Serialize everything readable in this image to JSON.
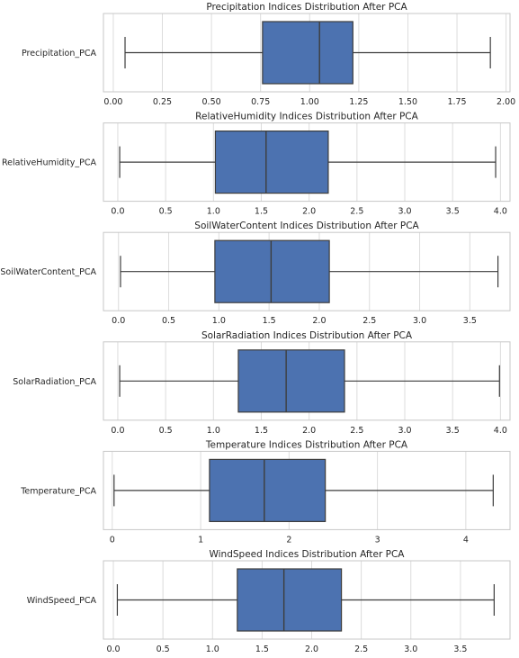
{
  "chart_data": [
    {
      "type": "boxplot",
      "title": "Precipitation Indices Distribution After PCA",
      "category": "Precipitation_PCA",
      "xlim": [
        -0.05,
        2.02
      ],
      "ticks": [
        0.0,
        0.25,
        0.5,
        0.75,
        1.0,
        1.25,
        1.5,
        1.75,
        2.0
      ],
      "tick_labels": [
        "0.00",
        "0.25",
        "0.50",
        "0.75",
        "1.00",
        "1.25",
        "1.50",
        "1.75",
        "2.00"
      ],
      "whisker_low": 0.06,
      "q1": 0.76,
      "median": 1.05,
      "q3": 1.22,
      "whisker_high": 1.92
    },
    {
      "type": "boxplot",
      "title": "RelativeHumidity Indices Distribution After PCA",
      "category": "RelativeHumidity_PCA",
      "xlim": [
        -0.15,
        4.1
      ],
      "ticks": [
        0.0,
        0.5,
        1.0,
        1.5,
        2.0,
        2.5,
        3.0,
        3.5,
        4.0
      ],
      "tick_labels": [
        "0.0",
        "0.5",
        "1.0",
        "1.5",
        "2.0",
        "2.5",
        "3.0",
        "3.5",
        "4.0"
      ],
      "whisker_low": 0.02,
      "q1": 1.02,
      "median": 1.55,
      "q3": 2.2,
      "whisker_high": 3.95
    },
    {
      "type": "boxplot",
      "title": "SoilWaterContent Indices Distribution After PCA",
      "category": "SoilWaterContent_PCA",
      "xlim": [
        -0.15,
        3.9
      ],
      "ticks": [
        0.0,
        0.5,
        1.0,
        1.5,
        2.0,
        2.5,
        3.0,
        3.5
      ],
      "tick_labels": [
        "0.0",
        "0.5",
        "1.0",
        "1.5",
        "2.0",
        "2.5",
        "3.0",
        "3.5"
      ],
      "whisker_low": 0.02,
      "q1": 0.96,
      "median": 1.52,
      "q3": 2.1,
      "whisker_high": 3.78
    },
    {
      "type": "boxplot",
      "title": "SolarRadiation Indices Distribution After PCA",
      "category": "SolarRadiation_PCA",
      "xlim": [
        -0.15,
        4.1
      ],
      "ticks": [
        0.0,
        0.5,
        1.0,
        1.5,
        2.0,
        2.5,
        3.0,
        3.5,
        4.0
      ],
      "tick_labels": [
        "0.0",
        "0.5",
        "1.0",
        "1.5",
        "2.0",
        "2.5",
        "3.0",
        "3.5",
        "4.0"
      ],
      "whisker_low": 0.02,
      "q1": 1.26,
      "median": 1.76,
      "q3": 2.37,
      "whisker_high": 3.99
    },
    {
      "type": "boxplot",
      "title": "Temperature Indices Distribution After PCA",
      "category": "Temperature_PCA",
      "xlim": [
        -0.1,
        4.5
      ],
      "ticks": [
        0,
        1,
        2,
        3,
        4
      ],
      "tick_labels": [
        "0",
        "1",
        "2",
        "3",
        "4"
      ],
      "whisker_low": 0.02,
      "q1": 1.1,
      "median": 1.72,
      "q3": 2.41,
      "whisker_high": 4.31
    },
    {
      "type": "boxplot",
      "title": "WindSpeed Indices Distribution After PCA",
      "category": "WindSpeed_PCA",
      "xlim": [
        -0.1,
        4.0
      ],
      "ticks": [
        0.0,
        0.5,
        1.0,
        1.5,
        2.0,
        2.5,
        3.0,
        3.5
      ],
      "tick_labels": [
        "0.0",
        "0.5",
        "1.0",
        "1.5",
        "2.0",
        "2.5",
        "3.0",
        "3.5"
      ],
      "whisker_low": 0.04,
      "q1": 1.25,
      "median": 1.72,
      "q3": 2.3,
      "whisker_high": 3.84
    }
  ],
  "style": {
    "box_fill": "#4c72b0",
    "line_color": "#3d3d3d",
    "grid_color": "#dcdcdc",
    "spine_color": "#c7c7c7"
  }
}
